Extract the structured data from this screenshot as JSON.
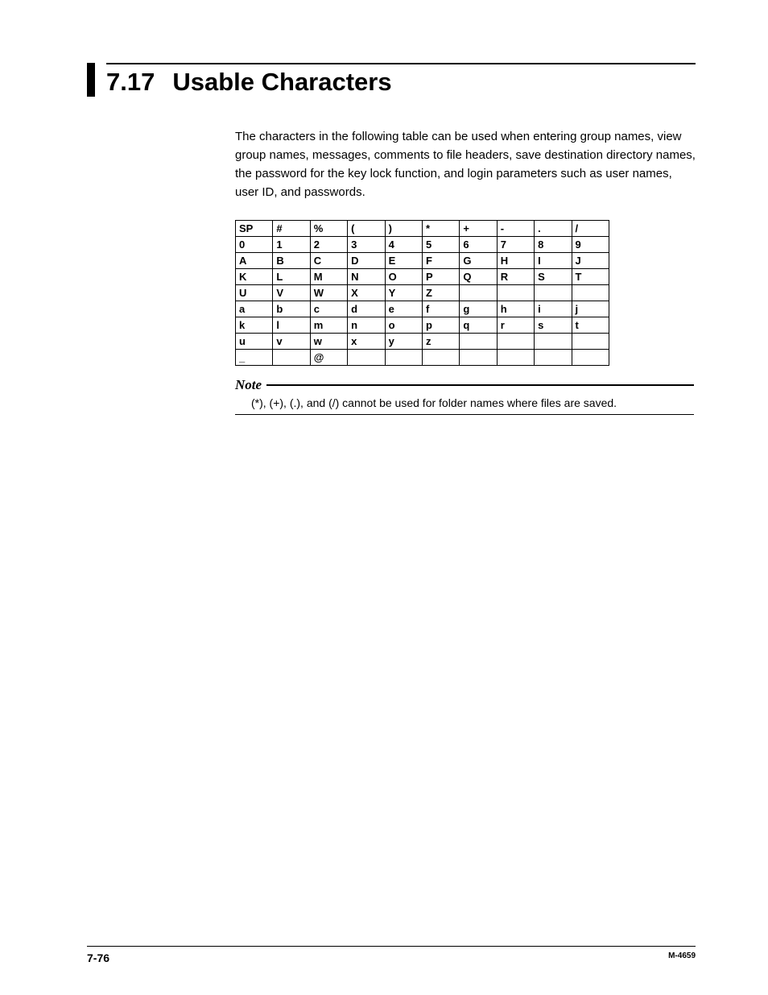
{
  "heading": {
    "number": "7.17",
    "title": "Usable Characters"
  },
  "intro": "The characters in the following table can be used when entering group names, view group names, messages, comments to file headers, save destination directory names, the password for the key lock function, and login parameters such as user names, user ID, and passwords.",
  "char_table": {
    "columns": 10,
    "rows": [
      [
        "SP",
        "#",
        "%",
        "(",
        ")",
        "*",
        "+",
        "-",
        ".",
        "/"
      ],
      [
        "0",
        "1",
        "2",
        "3",
        "4",
        "5",
        "6",
        "7",
        "8",
        "9"
      ],
      [
        "A",
        "B",
        "C",
        "D",
        "E",
        "F",
        "G",
        "H",
        "I",
        "J"
      ],
      [
        "K",
        "L",
        "M",
        "N",
        "O",
        "P",
        "Q",
        "R",
        "S",
        "T"
      ],
      [
        "U",
        "V",
        "W",
        "X",
        "Y",
        "Z",
        "",
        "",
        "",
        ""
      ],
      [
        "a",
        "b",
        "c",
        "d",
        "e",
        "f",
        "g",
        "h",
        "i",
        "j"
      ],
      [
        "k",
        "l",
        "m",
        "n",
        "o",
        "p",
        "q",
        "r",
        "s",
        "t"
      ],
      [
        "u",
        "v",
        "w",
        "x",
        "y",
        "z",
        "",
        "",
        "",
        ""
      ],
      [
        "_",
        "",
        "@",
        "",
        "",
        "",
        "",
        "",
        "",
        ""
      ]
    ],
    "cell_font_weight": "bold",
    "cell_font_size": 13,
    "border_color": "#000000"
  },
  "note": {
    "label": "Note",
    "body": "(*), (+), (.), and (/) cannot be used for folder names where files are saved."
  },
  "footer": {
    "page": "7-76",
    "doc": "M-4659"
  }
}
